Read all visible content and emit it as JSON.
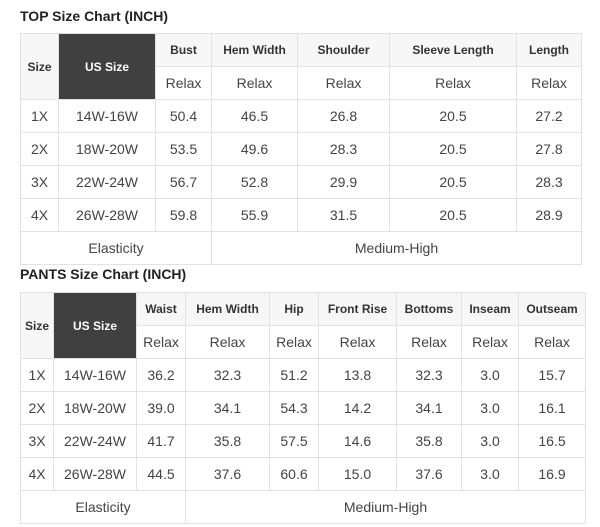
{
  "top": {
    "title": "TOP Size Chart (INCH)",
    "headers": [
      "Size",
      "US Size",
      "Bust",
      "Hem Width",
      "Shoulder",
      "Sleeve Length",
      "Length"
    ],
    "subheader": "Relax",
    "rows": [
      [
        "1X",
        "14W-16W",
        "50.4",
        "46.5",
        "26.8",
        "20.5",
        "27.2"
      ],
      [
        "2X",
        "18W-20W",
        "53.5",
        "49.6",
        "28.3",
        "20.5",
        "27.8"
      ],
      [
        "3X",
        "22W-24W",
        "56.7",
        "52.8",
        "29.9",
        "20.5",
        "28.3"
      ],
      [
        "4X",
        "26W-28W",
        "59.8",
        "55.9",
        "31.5",
        "20.5",
        "28.9"
      ]
    ],
    "elasticity_label": "Elasticity",
    "elasticity_value": "Medium-High"
  },
  "pants": {
    "title": "PANTS Size Chart (INCH)",
    "headers": [
      "Size",
      "US Size",
      "Waist",
      "Hem Width",
      "Hip",
      "Front Rise",
      "Bottoms",
      "Inseam",
      "Outseam"
    ],
    "subheader": "Relax",
    "rows": [
      [
        "1X",
        "14W-16W",
        "36.2",
        "32.3",
        "51.2",
        "13.8",
        "32.3",
        "3.0",
        "15.7"
      ],
      [
        "2X",
        "18W-20W",
        "39.0",
        "34.1",
        "54.3",
        "14.2",
        "34.1",
        "3.0",
        "16.1"
      ],
      [
        "3X",
        "22W-24W",
        "41.7",
        "35.8",
        "57.5",
        "14.6",
        "35.8",
        "3.0",
        "16.5"
      ],
      [
        "4X",
        "26W-28W",
        "44.5",
        "37.6",
        "60.6",
        "15.0",
        "37.6",
        "3.0",
        "16.9"
      ]
    ],
    "elasticity_label": "Elasticity",
    "elasticity_value": "Medium-High"
  },
  "colors": {
    "us_size_header_bg": "#404040",
    "header_bg": "#f7f7f7",
    "border": "#e2e2e2"
  }
}
